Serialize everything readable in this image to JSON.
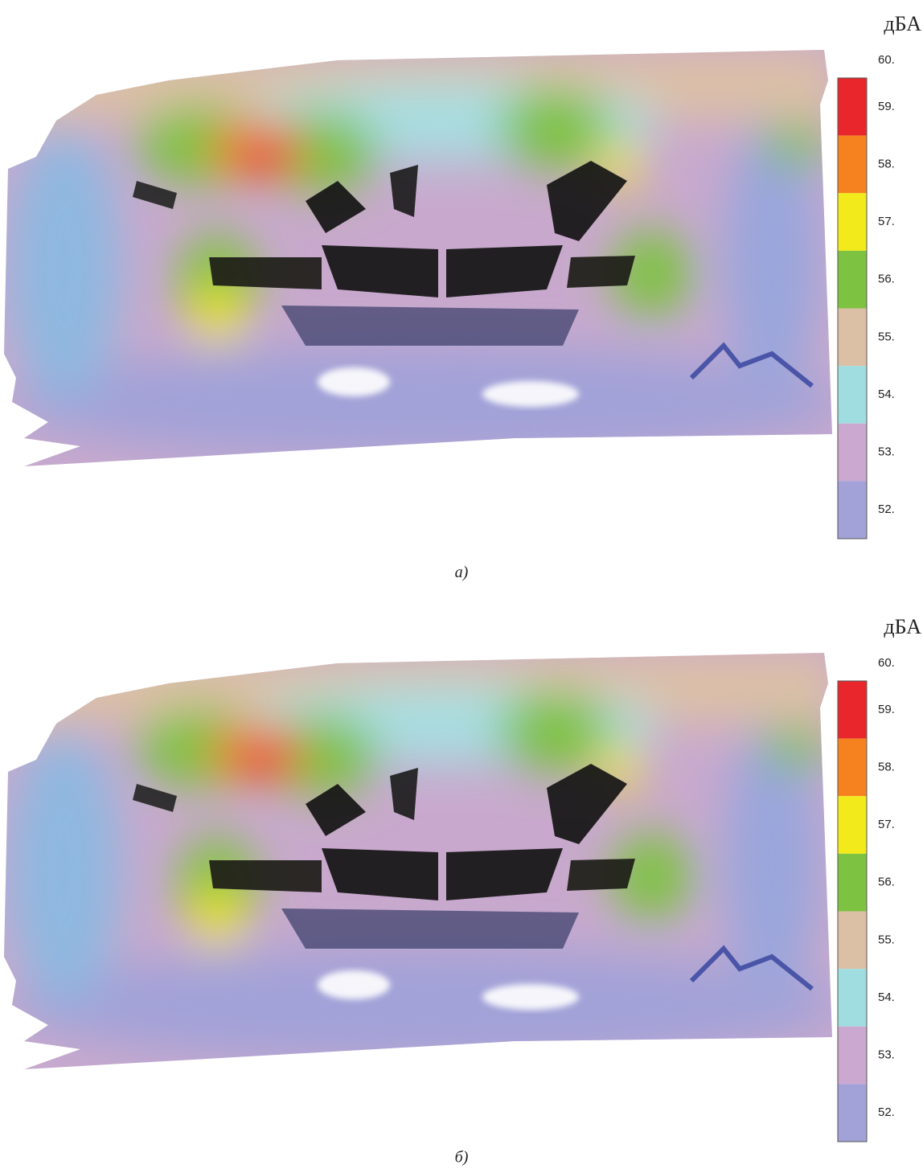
{
  "panels": [
    {
      "unit": "дБА",
      "scale_labels": [
        "60.",
        "59.",
        "58.",
        "57.",
        "56.",
        "55.",
        "54.",
        "53.",
        "52."
      ],
      "colors": [
        "#e8262b",
        "#f5821f",
        "#f2ea1a",
        "#7ec242",
        "#dcc0a6",
        "#9fdde0",
        "#cba8cf",
        "#a2a2d8"
      ],
      "caption": "а)"
    },
    {
      "unit": "дБА",
      "scale_labels": [
        "60.",
        "59.",
        "58.",
        "57.",
        "56.",
        "55.",
        "54.",
        "53.",
        "52."
      ],
      "colors": [
        "#e8262b",
        "#f5821f",
        "#f2ea1a",
        "#7ec242",
        "#dcc0a6",
        "#9fdde0",
        "#cba8cf",
        "#a2a2d8"
      ],
      "caption": "б)"
    }
  ]
}
